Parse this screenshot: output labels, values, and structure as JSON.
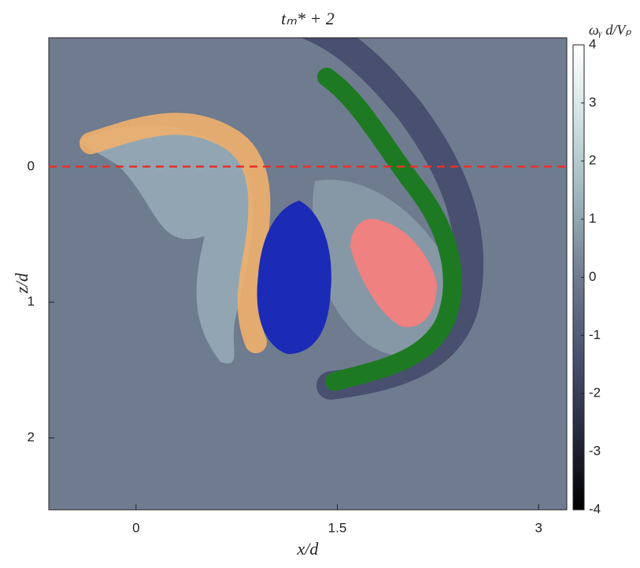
{
  "chart_data": {
    "type": "contour",
    "title": "tₘ* + 2",
    "xlabel": "x/d",
    "ylabel": "z/d",
    "xlim": [
      -0.65,
      3.21
    ],
    "ylim": [
      2.53,
      -0.95
    ],
    "xticks": [
      0,
      {
        "value": 1.5,
        "label": "1.5"
      },
      3
    ],
    "yticks": [
      0,
      1,
      2
    ],
    "background": "#6f7b8f",
    "reference_line": {
      "y": 0,
      "color": "#e8302a"
    },
    "colorbar": {
      "label": "ωᵧ d/Vₚ",
      "lim": [
        -4,
        4
      ],
      "ticks": [
        -4,
        -3,
        -2,
        -1,
        0,
        1,
        2,
        3,
        4
      ],
      "colormap": [
        "#000000",
        "#262a3e",
        "#4a5170",
        "#6f7b8f",
        "#9db3bb",
        "#cfe0e2",
        "#ffffff"
      ]
    }
  }
}
